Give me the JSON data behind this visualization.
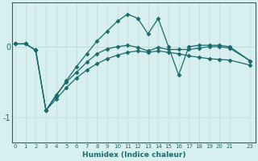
{
  "xlabel": "Humidex (Indice chaleur)",
  "background_color": "#d7efef",
  "line_color": "#1a6b6b",
  "grid_color_v": "#c8dede",
  "grid_color_h": "#c8dede",
  "x_data": [
    0,
    1,
    2,
    3,
    4,
    5,
    6,
    7,
    8,
    9,
    10,
    11,
    12,
    13,
    14,
    15,
    16,
    17,
    18,
    19,
    20,
    21,
    23
  ],
  "line1_y": [
    0.04,
    0.04,
    -0.05,
    -0.9,
    -0.7,
    -0.48,
    -0.28,
    -0.1,
    0.08,
    0.22,
    0.36,
    0.46,
    0.4,
    0.18,
    0.4,
    0.0,
    -0.4,
    0.0,
    0.02,
    0.02,
    0.02,
    0.0,
    -0.2
  ],
  "line2_y": [
    0.04,
    0.04,
    -0.05,
    -0.9,
    -0.68,
    -0.5,
    -0.36,
    -0.22,
    -0.1,
    -0.03,
    0.0,
    0.02,
    -0.01,
    -0.06,
    -0.01,
    -0.04,
    -0.04,
    -0.04,
    -0.02,
    0.0,
    0.0,
    -0.02,
    -0.2
  ],
  "line3_y": [
    0.04,
    0.04,
    -0.05,
    -0.9,
    -0.74,
    -0.58,
    -0.44,
    -0.33,
    -0.24,
    -0.17,
    -0.12,
    -0.08,
    -0.06,
    -0.08,
    -0.06,
    -0.08,
    -0.1,
    -0.13,
    -0.15,
    -0.17,
    -0.18,
    -0.19,
    -0.26
  ],
  "ylim": [
    -1.35,
    0.62
  ],
  "yticks": [
    -1,
    0
  ],
  "xlim": [
    -0.3,
    23.5
  ],
  "xticks": [
    0,
    1,
    2,
    3,
    4,
    5,
    6,
    7,
    8,
    9,
    10,
    11,
    12,
    13,
    14,
    15,
    16,
    17,
    18,
    19,
    20,
    21,
    23
  ]
}
